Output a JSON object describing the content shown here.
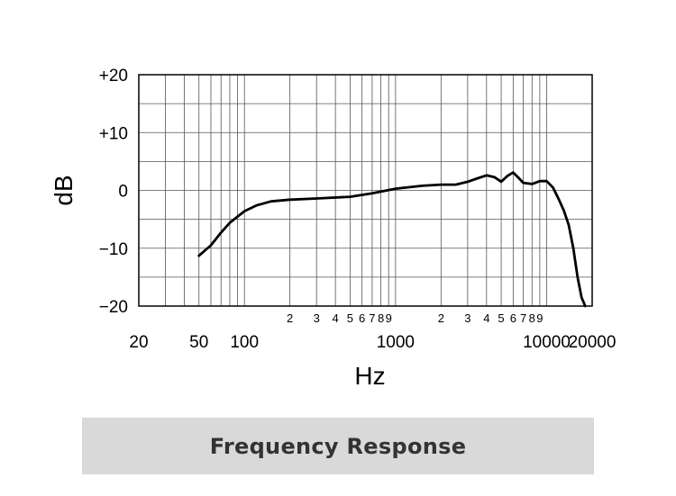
{
  "title": "Frequency Response",
  "chart_data": {
    "type": "line",
    "xlabel": "Hz",
    "ylabel": "dB",
    "x_scale": "log",
    "xlim": [
      20,
      20000
    ],
    "ylim": [
      -20,
      20
    ],
    "grid": true,
    "x_tick_labels": [
      {
        "value": 20,
        "label": "20"
      },
      {
        "value": 50,
        "label": "50"
      },
      {
        "value": 100,
        "label": "100"
      },
      {
        "value": 1000,
        "label": "1000"
      },
      {
        "value": 10000,
        "label": "10000"
      },
      {
        "value": 20000,
        "label": "20000"
      }
    ],
    "x_minor_labels": [
      {
        "value": 200,
        "label": "2"
      },
      {
        "value": 300,
        "label": "3"
      },
      {
        "value": 400,
        "label": "4"
      },
      {
        "value": 500,
        "label": "5"
      },
      {
        "value": 600,
        "label": "6"
      },
      {
        "value": 700,
        "label": "7"
      },
      {
        "value": 800,
        "label": "8"
      },
      {
        "value": 900,
        "label": "9"
      },
      {
        "value": 2000,
        "label": "2"
      },
      {
        "value": 3000,
        "label": "3"
      },
      {
        "value": 4000,
        "label": "4"
      },
      {
        "value": 5000,
        "label": "5"
      },
      {
        "value": 6000,
        "label": "6"
      },
      {
        "value": 7000,
        "label": "7"
      },
      {
        "value": 8000,
        "label": "8"
      },
      {
        "value": 9000,
        "label": "9"
      }
    ],
    "y_tick_labels": [
      {
        "value": 20,
        "label": "+20"
      },
      {
        "value": 10,
        "label": "+10"
      },
      {
        "value": 0,
        "label": "0"
      },
      {
        "value": -10,
        "label": "−10"
      },
      {
        "value": -20,
        "label": "−20"
      }
    ],
    "series": [
      {
        "x": [
          50,
          60,
          70,
          80,
          100,
          120,
          150,
          200,
          300,
          500,
          700,
          1000,
          1500,
          2000,
          2500,
          3000,
          3500,
          4000,
          4500,
          5000,
          5500,
          6000,
          6500,
          7000,
          8000,
          9000,
          10000,
          11000,
          12000,
          13000,
          14000,
          15000,
          16000,
          17000,
          18000
        ],
        "y": [
          -11.3,
          -9.5,
          -7.3,
          -5.6,
          -3.6,
          -2.6,
          -1.9,
          -1.6,
          -1.4,
          -1.1,
          -0.5,
          0.3,
          0.8,
          1.0,
          1.0,
          1.5,
          2.1,
          2.6,
          2.3,
          1.5,
          2.5,
          3.1,
          2.2,
          1.3,
          1.1,
          1.6,
          1.6,
          0.5,
          -1.5,
          -3.5,
          -6.0,
          -10.0,
          -15.0,
          -18.5,
          -20.0
        ]
      }
    ],
    "line_color": "#000000",
    "grid_color": "#555555"
  }
}
